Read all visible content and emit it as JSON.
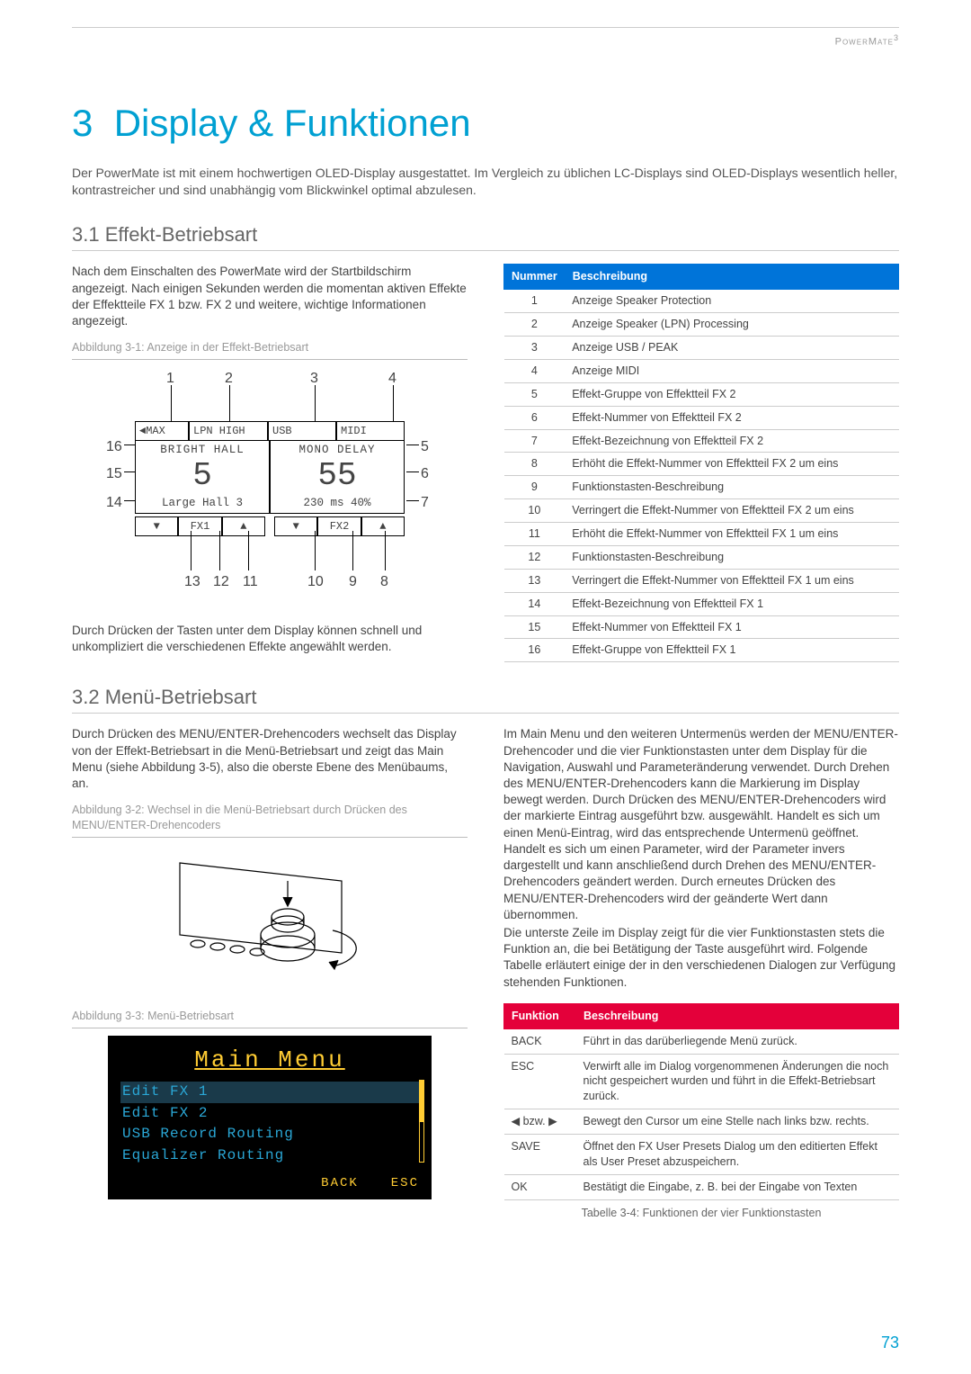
{
  "runningHead": {
    "brand": "PowerMate",
    "sup": "3"
  },
  "chapter": {
    "num": "3",
    "title": "Display & Funktionen"
  },
  "intro": "Der PowerMate ist mit einem hochwertigen OLED-Display ausgestattet. Im Vergleich zu üblichen LC-Displays sind OLED-Displays wesentlich heller, kontrastreicher und sind unabhängig vom Blickwinkel optimal abzulesen.",
  "sec31": {
    "heading": "3.1 Effekt-Betriebsart",
    "para1": "Nach dem Einschalten des PowerMate wird der Startbildschirm angezeigt. Nach einigen Sekunden werden die momentan aktiven Effekte der Effektteile FX 1 bzw. FX 2 und weitere, wichtige Informationen angezeigt.",
    "figCaption": "Abbildung 3-1: Anzeige in der Effekt-Betriebsart",
    "oled": {
      "row1": [
        "MAX",
        "LPN HIGH",
        "USB",
        "MIDI"
      ],
      "nameL": "BRIGHT HALL",
      "nameR": "MONO DELAY",
      "numL": "5",
      "numR": "55",
      "detL": "Large Hall 3",
      "detR": "230 ms 40%",
      "fxL_dn": "▼",
      "fxL_lbl": "FX1",
      "fxL_up": "▲",
      "fxR_dn": "▼",
      "fxR_lbl": "FX2",
      "fxR_up": "▲"
    },
    "callouts": [
      "1",
      "2",
      "3",
      "4",
      "5",
      "6",
      "7",
      "8",
      "9",
      "10",
      "11",
      "12",
      "13",
      "14",
      "15",
      "16"
    ],
    "para2": "Durch Drücken der Tasten unter dem Display können schnell und unkompliziert die verschiedenen Effekte angewählt werden.",
    "table": {
      "head": [
        "Nummer",
        "Beschreibung"
      ],
      "rows": [
        [
          "1",
          "Anzeige Speaker Protection"
        ],
        [
          "2",
          "Anzeige Speaker (LPN) Processing"
        ],
        [
          "3",
          "Anzeige USB / PEAK"
        ],
        [
          "4",
          "Anzeige MIDI"
        ],
        [
          "5",
          "Effekt-Gruppe von Effektteil FX 2"
        ],
        [
          "6",
          "Effekt-Nummer von Effektteil FX 2"
        ],
        [
          "7",
          "Effekt-Bezeichnung von Effektteil FX 2"
        ],
        [
          "8",
          "Erhöht die Effekt-Nummer von Effektteil FX 2 um eins"
        ],
        [
          "9",
          "Funktionstasten-Beschreibung"
        ],
        [
          "10",
          "Verringert die Effekt-Nummer von Effektteil FX 2 um eins"
        ],
        [
          "11",
          "Erhöht die Effekt-Nummer von Effektteil FX 1 um eins"
        ],
        [
          "12",
          "Funktionstasten-Beschreibung"
        ],
        [
          "13",
          "Verringert die Effekt-Nummer von Effektteil FX 1 um eins"
        ],
        [
          "14",
          "Effekt-Bezeichnung von Effektteil FX 1"
        ],
        [
          "15",
          "Effekt-Nummer von Effektteil FX 1"
        ],
        [
          "16",
          "Effekt-Gruppe von Effektteil FX 1"
        ]
      ]
    }
  },
  "sec32": {
    "heading": "3.2 Menü-Betriebsart",
    "leftPara": "Durch Drücken des MENU/ENTER-Drehencoders wechselt das Display von der Effekt-Betriebsart in die Menü-Betriebsart und zeigt das Main Menu (siehe Abbildung 3-5), also die oberste Ebene des Menübaums, an.",
    "fig2Caption": "Abbildung 3-2: Wechsel in die Menü-Betriebsart durch Drücken des MENU/ENTER-Drehencoders",
    "fig3Caption": "Abbildung 3-3: Menü-Betriebsart",
    "menu": {
      "title": "Main Menu",
      "items": [
        "Edit FX 1",
        "Edit FX 2",
        "USB Record Routing",
        "Equalizer Routing"
      ],
      "softkeys": [
        "BACK",
        "ESC"
      ]
    },
    "rightPara1": "Im Main Menu und den weiteren Untermenüs werden der MENU/ENTER-Drehencoder und die vier Funktionstasten unter dem Display für die Navigation, Auswahl und Parameteränderung verwendet. Durch Drehen des MENU/ENTER-Drehencoders kann die Markierung im Display bewegt werden. Durch Drücken des MENU/ENTER-Drehencoders wird der markierte Eintrag ausgeführt bzw. ausgewählt. Handelt es sich um einen Menü-Eintrag, wird das entsprechende Untermenü geöffnet. Handelt es sich um einen Parameter, wird der Parameter invers dargestellt und kann anschließend durch Drehen des MENU/ENTER-Drehencoders geändert werden. Durch erneutes Drücken des MENU/ENTER-Drehencoders wird der geänderte Wert dann übernommen.",
    "rightPara2": "Die unterste Zeile im Display zeigt für die vier Funktionstasten stets die Funktion an, die bei Betätigung der Taste ausgeführt wird. Folgende Tabelle erläutert einige der in den verschiedenen Dialogen zur Verfügung stehenden Funktionen.",
    "funcTable": {
      "head": [
        "Funktion",
        "Beschreibung"
      ],
      "rows": [
        [
          "BACK",
          "Führt in das darüberliegende Menü zurück."
        ],
        [
          "ESC",
          "Verwirft alle im Dialog vorgenommenen Änderungen die noch nicht gespeichert wurden und führt in die Effekt-Betriebsart zurück."
        ],
        [
          "◀ bzw. ▶",
          "Bewegt den Cursor um eine Stelle nach links bzw. rechts."
        ],
        [
          "SAVE",
          "Öffnet den FX User Presets Dialog um den editierten Effekt als User Preset abzuspeichern."
        ],
        [
          "OK",
          "Bestätigt die Eingabe, z. B. bei der Eingabe von Texten"
        ]
      ]
    },
    "funcCaption": "Tabelle 3-4: Funktionen der vier Funktionstasten"
  },
  "pageNum": "73"
}
